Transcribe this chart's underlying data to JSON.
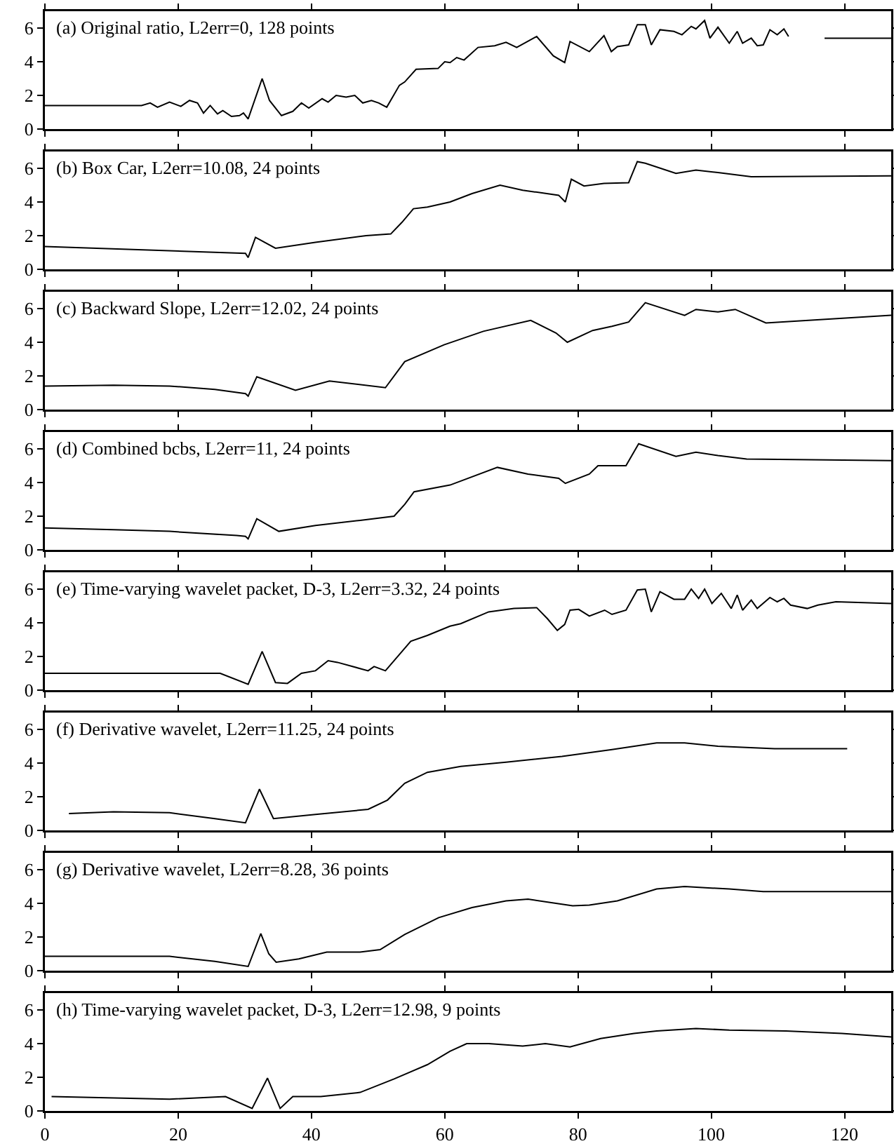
{
  "chart_data": [
    {
      "type": "line",
      "title": "(a) Original ratio, L2err=0, 128 points",
      "color": "#000000",
      "xlim": [
        0,
        127
      ],
      "ylim": [
        0,
        7
      ],
      "yticks": [
        0,
        2,
        4,
        6
      ],
      "xticks": [
        0,
        20,
        40,
        60,
        80,
        100,
        120
      ],
      "tick_labels": "y",
      "x": [
        0,
        14.5,
        15.8,
        16.9,
        18.7,
        20.4,
        21.7,
        22.9,
        23.8,
        24.8,
        25.9,
        26.7,
        28,
        29.2,
        29.8,
        30.5,
        32.6,
        33.7,
        35.5,
        37.2,
        38.5,
        39.6,
        41.6,
        42.5,
        43.7,
        45.2,
        46.5,
        47.7,
        49,
        50.1,
        51.3,
        53.2,
        54,
        55.7,
        59,
        60,
        60.8,
        61.8,
        62.9,
        65,
        67.5,
        69.2,
        70.8,
        73.8,
        76.3,
        78,
        78.8,
        81.7,
        83.9,
        85,
        85.9,
        87.6,
        88.9,
        90.1,
        91,
        92.3,
        94.4,
        95.6,
        97,
        97.7,
        99,
        99.8,
        101,
        102.7,
        103.9,
        104.7,
        106,
        106.9,
        107.8,
        108.8,
        109.9,
        110.9,
        111.6,
        114,
        117,
        127
      ],
      "values": [
        1.4,
        1.4,
        1.55,
        1.3,
        1.6,
        1.35,
        1.7,
        1.55,
        0.95,
        1.4,
        0.9,
        1.1,
        0.75,
        0.8,
        0.95,
        0.6,
        3.0,
        1.7,
        0.8,
        1.05,
        1.55,
        1.25,
        1.8,
        1.6,
        2.0,
        1.9,
        2.0,
        1.55,
        1.7,
        1.55,
        1.3,
        2.6,
        2.8,
        3.55,
        3.6,
        4.0,
        3.95,
        4.25,
        4.1,
        4.85,
        4.95,
        5.15,
        4.85,
        5.5,
        4.35,
        3.95,
        5.2,
        4.6,
        5.55,
        4.6,
        4.9,
        5.0,
        6.2,
        6.2,
        5.0,
        5.9,
        5.8,
        5.6,
        6.1,
        5.95,
        6.45,
        5.4,
        6.05,
        5.1,
        5.8,
        5.1,
        5.4,
        4.95,
        5.0,
        5.9,
        5.6,
        5.95,
        5.5,
        null,
        5.4,
        5.4
      ]
    },
    {
      "type": "line",
      "title": "(b) Box Car, L2err=10.08, 24 points",
      "color": "#000000",
      "xlim": [
        0,
        127
      ],
      "ylim": [
        0,
        7
      ],
      "yticks": [
        0,
        2,
        4,
        6
      ],
      "xticks": [
        0,
        20,
        40,
        60,
        80,
        100,
        120
      ],
      "tick_labels": "y",
      "x": [
        0,
        30.1,
        30.5,
        31.6,
        34.6,
        40.6,
        48.2,
        51.9,
        53.6,
        55.3,
        57.4,
        60.8,
        64.1,
        68.3,
        71.7,
        77.1,
        78.1,
        79,
        80.9,
        83.9,
        87.6,
        88.9,
        90.1,
        94.7,
        97.7,
        101,
        106,
        127
      ],
      "values": [
        1.35,
        0.95,
        0.7,
        1.9,
        1.25,
        1.6,
        2.0,
        2.1,
        2.8,
        3.6,
        3.7,
        4.0,
        4.5,
        5.0,
        4.7,
        4.4,
        4.0,
        5.35,
        4.95,
        5.1,
        5.15,
        6.4,
        6.3,
        5.7,
        5.9,
        5.75,
        5.5,
        5.55
      ]
    },
    {
      "type": "line",
      "title": "(c) Backward Slope, L2err=12.02, 24 points",
      "color": "#000000",
      "xlim": [
        0,
        127
      ],
      "ylim": [
        0,
        7
      ],
      "yticks": [
        0,
        2,
        4,
        6
      ],
      "xticks": [
        0,
        20,
        40,
        60,
        80,
        100,
        120
      ],
      "tick_labels": "y",
      "x": [
        0,
        10.3,
        18.7,
        25.5,
        30.1,
        30.5,
        31.8,
        37.6,
        42.7,
        51.1,
        54,
        59.9,
        65.8,
        72.9,
        76.7,
        78.4,
        82.2,
        85.1,
        87.6,
        90.1,
        96,
        97.7,
        101,
        103.6,
        108.2,
        127
      ],
      "values": [
        1.4,
        1.45,
        1.4,
        1.2,
        0.95,
        0.8,
        1.95,
        1.15,
        1.7,
        1.3,
        2.85,
        3.85,
        4.65,
        5.3,
        4.55,
        4.0,
        4.7,
        4.95,
        5.2,
        6.35,
        5.6,
        5.95,
        5.8,
        5.95,
        5.15,
        5.6
      ]
    },
    {
      "type": "line",
      "title": "(d) Combined bcbs, L2err=11, 24 points",
      "color": "#000000",
      "xlim": [
        0,
        127
      ],
      "ylim": [
        0,
        7
      ],
      "yticks": [
        0,
        2,
        4,
        6
      ],
      "xticks": [
        0,
        20,
        40,
        60,
        80,
        100,
        120
      ],
      "tick_labels": "y",
      "x": [
        0,
        10.3,
        18.7,
        28.8,
        30.1,
        30.5,
        31.8,
        35.1,
        40.6,
        47.3,
        52.4,
        54,
        55.4,
        60.8,
        67.9,
        72.5,
        77.1,
        78.1,
        81.7,
        83,
        87.2,
        89.1,
        94.7,
        97.7,
        101,
        105.3,
        127
      ],
      "values": [
        1.3,
        1.2,
        1.1,
        0.85,
        0.8,
        0.65,
        1.85,
        1.1,
        1.45,
        1.75,
        2.0,
        2.7,
        3.45,
        3.85,
        4.9,
        4.5,
        4.25,
        3.95,
        4.5,
        5.0,
        5.0,
        6.3,
        5.55,
        5.8,
        5.6,
        5.4,
        5.3
      ]
    },
    {
      "type": "line",
      "title": "(e) Time-varying wavelet packet, D-3, L2err=3.32, 24 points",
      "color": "#000000",
      "xlim": [
        0,
        127
      ],
      "ylim": [
        0,
        7
      ],
      "yticks": [
        0,
        2,
        4,
        6
      ],
      "xticks": [
        0,
        20,
        40,
        60,
        80,
        100,
        120
      ],
      "tick_labels": "y",
      "x": [
        0,
        18.7,
        26.3,
        30.5,
        32.6,
        34.6,
        36.4,
        38.5,
        40.6,
        42.5,
        43.9,
        48.5,
        49.4,
        51.1,
        54.9,
        57.4,
        60.8,
        62.4,
        66.6,
        70.4,
        73.8,
        75.4,
        76.9,
        78,
        78.8,
        80.1,
        81.7,
        84,
        85.1,
        87.2,
        88.9,
        90.1,
        91,
        92.3,
        94.4,
        96,
        97,
        98.1,
        99,
        100.1,
        101.5,
        103,
        103.9,
        104.7,
        106,
        106.9,
        108.8,
        109.9,
        110.9,
        111.9,
        114.4,
        116,
        118.7,
        127
      ],
      "values": [
        1.0,
        1.0,
        1.0,
        0.35,
        2.3,
        0.45,
        0.4,
        1.0,
        1.15,
        1.75,
        1.65,
        1.15,
        1.4,
        1.15,
        2.9,
        3.25,
        3.8,
        3.95,
        4.65,
        4.85,
        4.9,
        4.25,
        3.55,
        3.9,
        4.75,
        4.8,
        4.4,
        4.75,
        4.5,
        4.75,
        5.95,
        6.0,
        4.65,
        5.85,
        5.4,
        5.4,
        6.0,
        5.45,
        6.0,
        5.15,
        5.75,
        4.85,
        5.65,
        4.75,
        5.35,
        4.85,
        5.5,
        5.25,
        5.45,
        5.05,
        4.85,
        5.05,
        5.25,
        5.15
      ]
    },
    {
      "type": "line",
      "title": "(f) Derivative wavelet, L2err=11.25, 24 points",
      "color": "#000000",
      "xlim": [
        0,
        127
      ],
      "ylim": [
        0,
        7
      ],
      "yticks": [
        0,
        2,
        4,
        6
      ],
      "xticks": [
        0,
        20,
        40,
        60,
        80,
        100,
        120
      ],
      "tick_labels": "y",
      "x": [
        3.6,
        10.3,
        18.7,
        25.5,
        30.1,
        32.2,
        34.3,
        40.6,
        48.5,
        51.4,
        54,
        57.4,
        62.4,
        69.2,
        77.6,
        85.1,
        91.8,
        96,
        101,
        109.5,
        120.4
      ],
      "values": [
        1.0,
        1.1,
        1.05,
        0.7,
        0.45,
        2.45,
        0.7,
        0.95,
        1.25,
        1.8,
        2.8,
        3.45,
        3.8,
        4.05,
        4.4,
        4.8,
        5.2,
        5.2,
        5.0,
        4.85,
        4.85
      ]
    },
    {
      "type": "line",
      "title": "(g) Derivative wavelet, L2err=8.28, 36 points",
      "color": "#000000",
      "xlim": [
        0,
        127
      ],
      "ylim": [
        0,
        7
      ],
      "yticks": [
        0,
        2,
        4,
        6
      ],
      "xticks": [
        0,
        20,
        40,
        60,
        80,
        100,
        120
      ],
      "tick_labels": "y",
      "x": [
        0,
        12.9,
        18.7,
        25.5,
        30.5,
        32.4,
        33.6,
        34.7,
        38.1,
        42.3,
        47.3,
        50.3,
        54,
        59.1,
        64.1,
        69.2,
        72.5,
        76.7,
        79.2,
        81.7,
        85.9,
        91.8,
        96,
        102.7,
        107.8,
        115.3,
        127
      ],
      "values": [
        0.85,
        0.85,
        0.85,
        0.55,
        0.25,
        2.2,
        1.0,
        0.5,
        0.7,
        1.1,
        1.1,
        1.25,
        2.15,
        3.15,
        3.75,
        4.15,
        4.25,
        4.0,
        3.85,
        3.9,
        4.15,
        4.85,
        5.0,
        4.85,
        4.7,
        4.7,
        4.7
      ]
    },
    {
      "type": "line",
      "title": "(h) Time-varying wavelet packet, D-3, L2err=12.98, 9 points",
      "color": "#000000",
      "xlim": [
        0,
        127
      ],
      "ylim": [
        0,
        7
      ],
      "yticks": [
        0,
        2,
        4,
        6
      ],
      "xticks": [
        0,
        20,
        40,
        60,
        80,
        100,
        120
      ],
      "x": [
        1,
        18.7,
        27.1,
        31.1,
        33.4,
        35.3,
        37.2,
        41.4,
        47.3,
        52.4,
        57.4,
        60.8,
        63.3,
        66.6,
        71.7,
        75.1,
        78.8,
        83.4,
        88.4,
        91.8,
        97.7,
        102.7,
        111.2,
        119.6,
        127
      ],
      "values": [
        0.85,
        0.7,
        0.85,
        0.15,
        1.95,
        0.15,
        0.85,
        0.85,
        1.1,
        1.9,
        2.75,
        3.55,
        4.0,
        4.0,
        3.85,
        4.0,
        3.8,
        4.3,
        4.6,
        4.75,
        4.9,
        4.8,
        4.75,
        4.6,
        4.4
      ]
    }
  ]
}
